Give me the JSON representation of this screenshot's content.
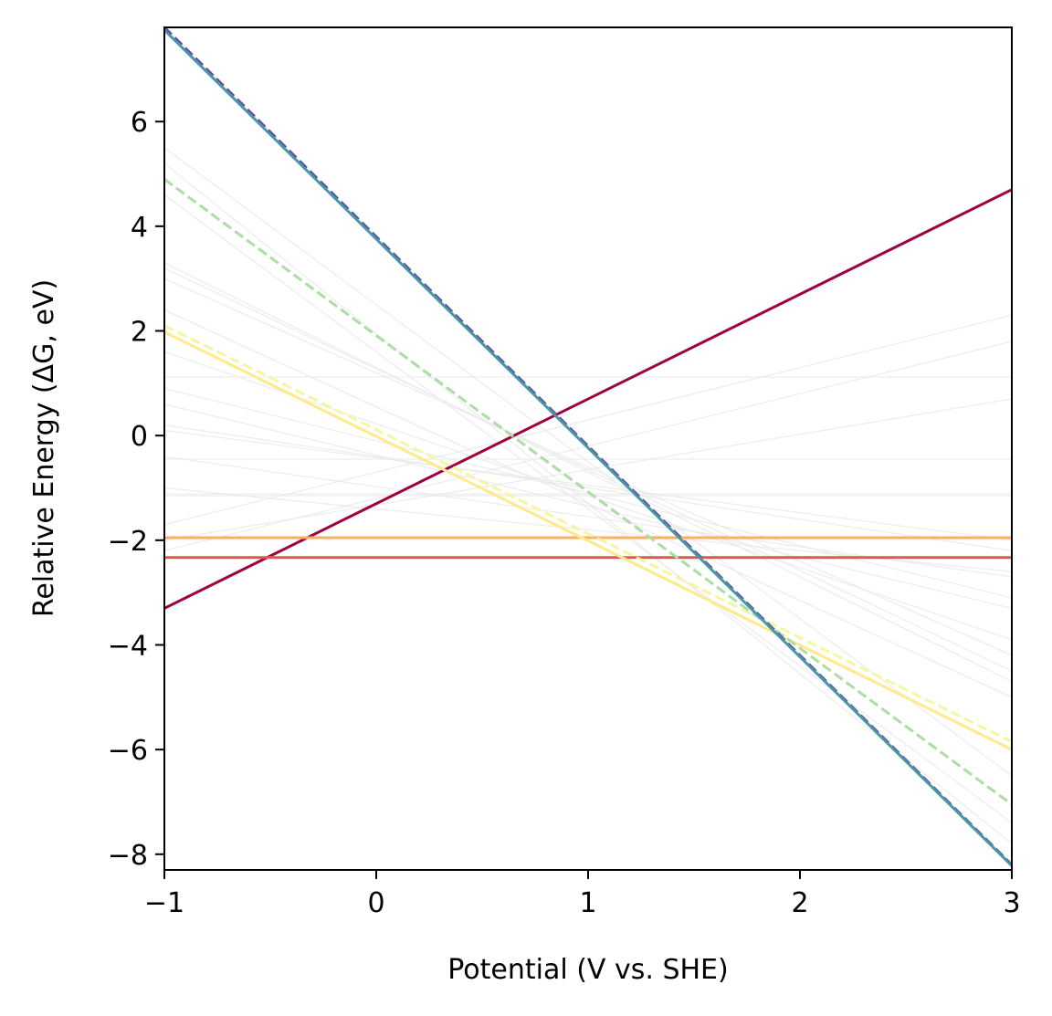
{
  "chart_data": {
    "type": "line",
    "title": "",
    "xlabel": "Potential (V vs. SHE)",
    "ylabel": "Relative Energy (ΔG, eV)",
    "xlim": [
      -1,
      3
    ],
    "ylim": [
      -8.3,
      7.8
    ],
    "xticks": [
      -1,
      0,
      1,
      2,
      3
    ],
    "xtick_labels": [
      "−1",
      "0",
      "1",
      "2",
      "3"
    ],
    "yticks": [
      -8,
      -6,
      -4,
      -2,
      0,
      2,
      4,
      6
    ],
    "ytick_labels": [
      "−8",
      "−6",
      "−4",
      "−2",
      "0",
      "2",
      "4",
      "6"
    ],
    "grid": false,
    "legend": "none",
    "series": [
      {
        "x": [
          -1,
          3
        ],
        "y": [
          -3.3,
          4.7
        ],
        "color": "#9e0142",
        "dash": "solid"
      },
      {
        "x": [
          -1,
          3
        ],
        "y": [
          -1.95,
          -1.95
        ],
        "color": "#fdae61",
        "dash": "solid"
      },
      {
        "x": [
          -1,
          3
        ],
        "y": [
          -2.33,
          -2.33
        ],
        "color": "#e0584c",
        "dash": "solid"
      },
      {
        "x": [
          -1,
          3
        ],
        "y": [
          1.98,
          -6.0
        ],
        "color": "#fee98b",
        "dash": "solid"
      },
      {
        "x": [
          -1,
          3
        ],
        "y": [
          2.1,
          -5.85
        ],
        "color": "#f4f6a0",
        "dash": "dashed"
      },
      {
        "x": [
          -1,
          3
        ],
        "y": [
          4.9,
          -7.05
        ],
        "color": "#abdda4",
        "dash": "dashed"
      },
      {
        "x": [
          -1,
          3
        ],
        "y": [
          7.8,
          -8.2
        ],
        "color": "#5e4fa2",
        "dash": "dashed"
      },
      {
        "x": [
          -1,
          3
        ],
        "y": [
          7.75,
          -8.22
        ],
        "color": "#4a96a8",
        "dash": "solid"
      }
    ],
    "background_series": [
      {
        "x": [
          -1,
          3
        ],
        "y": [
          5.5,
          -6.5
        ]
      },
      {
        "x": [
          -1,
          3
        ],
        "y": [
          5.2,
          -7.8
        ]
      },
      {
        "x": [
          -1,
          3
        ],
        "y": [
          4.6,
          -7.4
        ]
      },
      {
        "x": [
          -1,
          3
        ],
        "y": [
          3.3,
          -4.7
        ]
      },
      {
        "x": [
          -1,
          3
        ],
        "y": [
          3.2,
          -4.5
        ]
      },
      {
        "x": [
          -1,
          3
        ],
        "y": [
          3.0,
          -4.2
        ]
      },
      {
        "x": [
          -1,
          3
        ],
        "y": [
          2.4,
          -5.0
        ]
      },
      {
        "x": [
          -1,
          3
        ],
        "y": [
          1.6,
          -3.9
        ]
      },
      {
        "x": [
          -1,
          3
        ],
        "y": [
          0.9,
          -3.1
        ]
      },
      {
        "x": [
          -1,
          3
        ],
        "y": [
          0.6,
          -3.3
        ]
      },
      {
        "x": [
          -1,
          3
        ],
        "y": [
          0.2,
          -2.2
        ]
      },
      {
        "x": [
          -1,
          3
        ],
        "y": [
          0.1,
          -2.0
        ]
      },
      {
        "x": [
          -1,
          3
        ],
        "y": [
          1.12,
          1.12
        ]
      },
      {
        "x": [
          -1,
          3
        ],
        "y": [
          -0.45,
          -0.45
        ]
      },
      {
        "x": [
          -1,
          3
        ],
        "y": [
          -1.12,
          -1.12
        ]
      },
      {
        "x": [
          -1,
          3
        ],
        "y": [
          -1.15,
          -1.15
        ]
      },
      {
        "x": [
          -1,
          3
        ],
        "y": [
          -1.7,
          2.3
        ]
      },
      {
        "x": [
          -1,
          3
        ],
        "y": [
          -2.2,
          1.8
        ]
      },
      {
        "x": [
          -1,
          3
        ],
        "y": [
          -2.0,
          0.7
        ]
      },
      {
        "x": [
          -1,
          3
        ],
        "y": [
          -1.0,
          -2.6
        ]
      },
      {
        "x": [
          -1,
          3
        ],
        "y": [
          -0.4,
          -2.7
        ]
      }
    ],
    "background_color": "#e8e8e8"
  }
}
